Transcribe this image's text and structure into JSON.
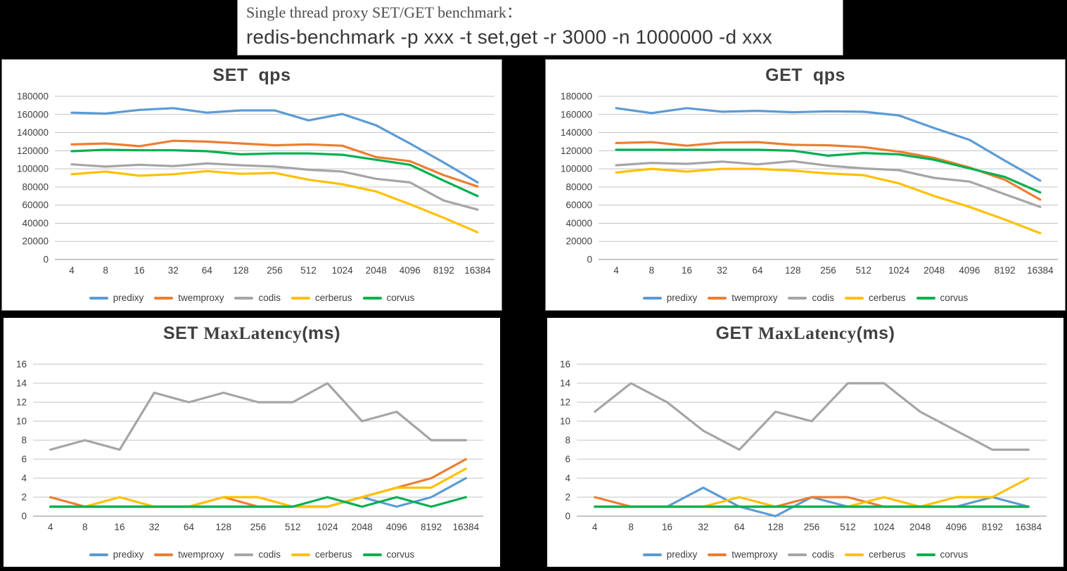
{
  "title_box": {
    "line1": "Single thread proxy SET/GET benchmark：",
    "line2": "redis-benchmark -p xxx -t set,get -r 3000 -n 1000000 -d xxx"
  },
  "palette": {
    "predixy": "#5B9BD5",
    "twemproxy": "#ED7D31",
    "codis": "#A5A5A5",
    "cerberus": "#FFC000",
    "corvus": "#00B050",
    "gridline": "#C3C3C3",
    "zero_axis": "#8C8C8C",
    "axis_text": "#404040",
    "title_text": "#404040"
  },
  "legend_labels": [
    "predixy",
    "twemproxy",
    "codis",
    "cerberus",
    "corvus"
  ],
  "chart_data": [
    {
      "id": "set-qps",
      "type": "line",
      "title_segments": [
        {
          "text": "SET  ",
          "serif": false
        },
        {
          "text": "qps",
          "serif": false
        }
      ],
      "categories": [
        "4",
        "8",
        "16",
        "32",
        "64",
        "128",
        "256",
        "512",
        "1024",
        "2048",
        "4096",
        "8192",
        "16384"
      ],
      "xlabel": "",
      "ylabel": "",
      "ylim": [
        0,
        180000
      ],
      "ytick_step": 20000,
      "grid": true,
      "legend_position": "bottom",
      "series": [
        {
          "name": "predixy",
          "color": "#5B9BD5",
          "values": [
            162000,
            161000,
            165000,
            167000,
            162000,
            164500,
            164500,
            153500,
            160500,
            148000,
            128000,
            107000,
            85000
          ]
        },
        {
          "name": "twemproxy",
          "color": "#ED7D31",
          "values": [
            127000,
            128000,
            125000,
            131000,
            130000,
            128000,
            126000,
            127000,
            125500,
            113000,
            108500,
            93000,
            80500
          ]
        },
        {
          "name": "codis",
          "color": "#A5A5A5",
          "values": [
            105000,
            102500,
            104500,
            103000,
            106000,
            104000,
            102500,
            99000,
            97000,
            89000,
            85000,
            65000,
            55000
          ]
        },
        {
          "name": "cerberus",
          "color": "#FFC000",
          "values": [
            94000,
            97000,
            92500,
            94000,
            97500,
            94500,
            95500,
            88000,
            83000,
            75000,
            61000,
            46000,
            30000
          ]
        },
        {
          "name": "corvus",
          "color": "#00B050",
          "values": [
            119500,
            121000,
            120500,
            120500,
            119500,
            116000,
            117000,
            117000,
            115500,
            110000,
            104500,
            87000,
            70000
          ]
        }
      ]
    },
    {
      "id": "get-qps",
      "type": "line",
      "title_segments": [
        {
          "text": "GET  ",
          "serif": false
        },
        {
          "text": "qps",
          "serif": false
        }
      ],
      "categories": [
        "4",
        "8",
        "16",
        "32",
        "64",
        "128",
        "256",
        "512",
        "1024",
        "2048",
        "4096",
        "8192",
        "16384"
      ],
      "xlabel": "",
      "ylabel": "",
      "ylim": [
        0,
        180000
      ],
      "ytick_step": 20000,
      "grid": true,
      "legend_position": "bottom",
      "series": [
        {
          "name": "predixy",
          "color": "#5B9BD5",
          "values": [
            167000,
            161500,
            167000,
            163000,
            164000,
            162500,
            163500,
            163000,
            159000,
            145000,
            132000,
            109000,
            87000
          ]
        },
        {
          "name": "twemproxy",
          "color": "#ED7D31",
          "values": [
            128500,
            129500,
            125500,
            129000,
            129500,
            126500,
            126000,
            124000,
            119000,
            112000,
            101500,
            88000,
            66000
          ]
        },
        {
          "name": "codis",
          "color": "#A5A5A5",
          "values": [
            104000,
            106500,
            105500,
            108000,
            105000,
            108500,
            103500,
            100500,
            98500,
            90000,
            86000,
            72000,
            58000
          ]
        },
        {
          "name": "cerberus",
          "color": "#FFC000",
          "values": [
            96000,
            100000,
            97000,
            100000,
            100000,
            98000,
            95000,
            93000,
            84000,
            70000,
            58000,
            44000,
            29000
          ]
        },
        {
          "name": "corvus",
          "color": "#00B050",
          "values": [
            121000,
            121000,
            121000,
            121000,
            121000,
            120000,
            114500,
            117500,
            116000,
            110000,
            100500,
            91000,
            74000
          ]
        }
      ]
    },
    {
      "id": "set-maxlatency",
      "type": "line",
      "title_segments": [
        {
          "text": "SET ",
          "serif": false
        },
        {
          "text": "MaxLatency",
          "serif": true
        },
        {
          "text": "(ms)",
          "serif": false
        }
      ],
      "categories": [
        "4",
        "8",
        "16",
        "32",
        "64",
        "128",
        "256",
        "512",
        "1024",
        "2048",
        "4096",
        "8192",
        "16384"
      ],
      "xlabel": "",
      "ylabel": "",
      "ylim": [
        0,
        16
      ],
      "ytick_step": 2,
      "grid": true,
      "legend_position": "bottom",
      "series": [
        {
          "name": "predixy",
          "color": "#5B9BD5",
          "values": [
            1,
            1,
            1,
            1,
            1,
            1,
            1,
            1,
            1,
            2,
            1,
            2,
            4
          ]
        },
        {
          "name": "twemproxy",
          "color": "#ED7D31",
          "values": [
            2,
            1,
            1,
            1,
            1,
            2,
            1,
            1,
            1,
            2,
            3,
            4,
            6
          ]
        },
        {
          "name": "codis",
          "color": "#A5A5A5",
          "values": [
            7,
            8,
            7,
            13,
            12,
            13,
            12,
            12,
            14,
            10,
            11,
            8,
            8
          ]
        },
        {
          "name": "cerberus",
          "color": "#FFC000",
          "values": [
            1,
            1,
            2,
            1,
            1,
            2,
            2,
            1,
            1,
            2,
            3,
            3,
            5
          ]
        },
        {
          "name": "corvus",
          "color": "#00B050",
          "values": [
            1,
            1,
            1,
            1,
            1,
            1,
            1,
            1,
            2,
            1,
            2,
            1,
            2
          ]
        }
      ]
    },
    {
      "id": "get-maxlatency",
      "type": "line",
      "title_segments": [
        {
          "text": "GET ",
          "serif": false
        },
        {
          "text": "MaxLatency",
          "serif": true
        },
        {
          "text": "(ms)",
          "serif": false
        }
      ],
      "categories": [
        "4",
        "8",
        "16",
        "32",
        "64",
        "128",
        "256",
        "512",
        "1024",
        "2048",
        "4096",
        "8192",
        "16384"
      ],
      "xlabel": "",
      "ylabel": "",
      "ylim": [
        0,
        16
      ],
      "ytick_step": 2,
      "grid": true,
      "legend_position": "bottom",
      "series": [
        {
          "name": "predixy",
          "color": "#5B9BD5",
          "values": [
            1,
            1,
            1,
            3,
            1,
            0,
            2,
            1,
            1,
            1,
            1,
            2,
            1
          ]
        },
        {
          "name": "twemproxy",
          "color": "#ED7D31",
          "values": [
            2,
            1,
            1,
            1,
            1,
            1,
            2,
            2,
            1,
            1,
            1,
            1,
            1
          ]
        },
        {
          "name": "codis",
          "color": "#A5A5A5",
          "values": [
            11,
            14,
            12,
            9,
            7,
            11,
            10,
            14,
            14,
            11,
            9,
            7,
            7
          ]
        },
        {
          "name": "cerberus",
          "color": "#FFC000",
          "values": [
            1,
            1,
            1,
            1,
            2,
            1,
            1,
            1,
            2,
            1,
            2,
            2,
            4
          ]
        },
        {
          "name": "corvus",
          "color": "#00B050",
          "values": [
            1,
            1,
            1,
            1,
            1,
            1,
            1,
            1,
            1,
            1,
            1,
            1,
            1
          ]
        }
      ]
    }
  ]
}
